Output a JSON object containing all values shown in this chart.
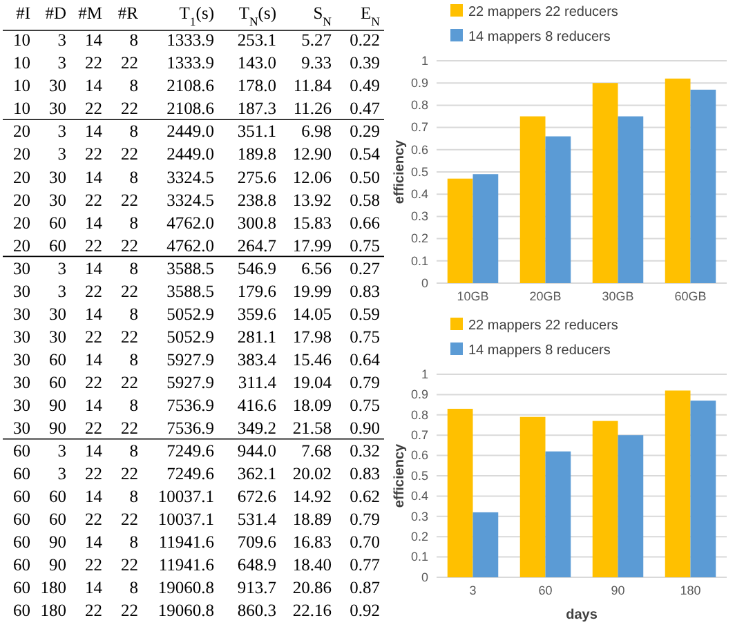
{
  "chart_data": [
    {
      "type": "other",
      "annotations": [
        "#I #D #M #R T$_{1}$(s) T$_{N}$(s) S$_{N}$ E$_{N}$",
        "10 3 14 8 1333.9 253.1 5.27 0.22",
        "10 3 22 22 1333.9 143.0 9.33 0.39",
        "10 30 14 8 2108.6 178.0 11.84 0.49",
        "10 30 22 22 2108.6 187.3 11.26 0.47",
        "20 3 14 8 2449.0 351.1 6.98 0.29",
        "20 3 22 22 2449.0 189.8 12.90 0.54",
        "20 30 14 8 3324.5 275.6 12.06 0.50",
        "20 30 22 22 3324.5 238.8 13.92 0.58",
        "20 60 14 8 4762.0 300.8 15.83 0.66",
        "20 60 22 22 4762.0 264.7 17.99 0.75",
        "30 3 14 8 3588.5 546.9 6.56 0.27",
        "30 3 22 22 3588.5 179.6 19.99 0.83",
        "30 30 14 8 5052.9 359.6 14.05 0.59",
        "30 30 22 22 5052.9 281.1 17.98 0.75",
        "30 60 14 8 5927.9 383.4 15.46 0.64",
        "30 60 22 22 5927.9 311.4 19.04 0.79",
        "30 90 14 8 7536.9 416.6 18.09 0.75",
        "30 90 22 22 7536.9 349.2 21.58 0.90",
        "60 3 14 8 7249.6 944.0 7.68 0.32",
        "60 3 22 22 7249.6 362.1 20.02 0.83",
        "60 60 14 8 10037.1 672.6 14.92 0.62",
        "60 60 22 22 10037.1 531.4 18.89 0.79",
        "60 90 14 8 11941.6 709.6 16.83 0.70",
        "60 90 22 22 11941.6 648.9 18.40 0.77",
        "60 180 14 8 19060.8 913.7 20.86 0.87",
        "60 180 22 22 19060.8 860.3 22.16 0.92"
      ]
    },
    {
      "type": "bar",
      "categories": [
        "10GB",
        "20GB",
        "30GB",
        "60GB"
      ],
      "ylabel": "efficiency",
      "ylim": [
        0,
        1
      ],
      "yticks": [
        0,
        0.1,
        0.2,
        0.3,
        0.4,
        0.5,
        0.6,
        0.7,
        0.8,
        0.9,
        1
      ],
      "grid": "y",
      "legend": "top left",
      "series": [
        {
          "name": "22 mappers 22 reducers",
          "color": "#ffc000",
          "values": [
            0.47,
            0.75,
            0.9,
            0.92
          ]
        },
        {
          "name": "14 mappers 8 reducers",
          "color": "#5b9bd5",
          "values": [
            0.49,
            0.66,
            0.75,
            0.87
          ]
        }
      ]
    },
    {
      "type": "bar",
      "categories": [
        "3",
        "60",
        "90",
        "180"
      ],
      "xlabel": "days",
      "ylabel": "efficiency",
      "ylim": [
        0,
        1
      ],
      "yticks": [
        0,
        0.1,
        0.2,
        0.3,
        0.4,
        0.5,
        0.6,
        0.7,
        0.8,
        0.9,
        1
      ],
      "grid": "y",
      "legend": "top left",
      "series": [
        {
          "name": "22 mappers 22 reducers",
          "color": "#ffc000",
          "values": [
            0.83,
            0.79,
            0.77,
            0.92
          ]
        },
        {
          "name": "14 mappers 8 reducers",
          "color": "#5b9bd5",
          "values": [
            0.32,
            0.62,
            0.7,
            0.87
          ]
        }
      ]
    }
  ]
}
